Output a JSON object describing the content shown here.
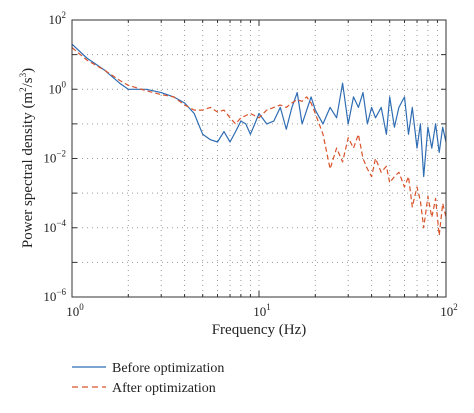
{
  "chart_data": {
    "type": "line",
    "xlabel": "Frequency (Hz)",
    "ylabel": {
      "prefix": "Power spectral density (m",
      "sup1": "2",
      "middle": "/s",
      "sup2": "3",
      "suffix": ")"
    },
    "x_scale": "log",
    "y_scale": "log",
    "xlim": [
      1,
      100
    ],
    "ylim": [
      1e-06,
      100
    ],
    "grid": "dotted",
    "legend_position": "below",
    "x_ticks": [
      {
        "value": 1,
        "base": "10",
        "exp": "0"
      },
      {
        "value": 10,
        "base": "10",
        "exp": "1"
      },
      {
        "value": 100,
        "base": "10",
        "exp": "2"
      }
    ],
    "y_ticks": [
      {
        "value": 100,
        "base": "10",
        "exp": "2"
      },
      {
        "value": 1,
        "base": "10",
        "exp": "0"
      },
      {
        "value": 0.01,
        "base": "10",
        "exp": "−2"
      },
      {
        "value": 0.0001,
        "base": "10",
        "exp": "−4"
      },
      {
        "value": 1e-06,
        "base": "10",
        "exp": "−6"
      }
    ],
    "series": [
      {
        "name": "Before optimization",
        "color": "#2f6db3",
        "dash": "solid",
        "points": [
          [
            1.0,
            20
          ],
          [
            1.2,
            8
          ],
          [
            1.5,
            3.5
          ],
          [
            1.8,
            1.5
          ],
          [
            2.0,
            1.0
          ],
          [
            2.5,
            1.0
          ],
          [
            3.0,
            0.8
          ],
          [
            3.5,
            0.6
          ],
          [
            4.0,
            0.4
          ],
          [
            4.5,
            0.2
          ],
          [
            5.0,
            0.05
          ],
          [
            5.5,
            0.035
          ],
          [
            6.0,
            0.03
          ],
          [
            6.5,
            0.06
          ],
          [
            7.0,
            0.03
          ],
          [
            7.5,
            0.06
          ],
          [
            8.0,
            0.12
          ],
          [
            8.5,
            0.1
          ],
          [
            9.0,
            0.05
          ],
          [
            9.5,
            0.1
          ],
          [
            10.0,
            0.2
          ],
          [
            11.0,
            0.1
          ],
          [
            12.0,
            0.12
          ],
          [
            13.0,
            0.3
          ],
          [
            14.0,
            0.07
          ],
          [
            15.0,
            0.3
          ],
          [
            16.0,
            0.8
          ],
          [
            17.0,
            0.1
          ],
          [
            18.0,
            0.25
          ],
          [
            19.0,
            0.6
          ],
          [
            20.0,
            0.25
          ],
          [
            22.0,
            0.1
          ],
          [
            24.0,
            0.3
          ],
          [
            26.0,
            0.15
          ],
          [
            28.0,
            1.5
          ],
          [
            30.0,
            0.1
          ],
          [
            32.0,
            0.6
          ],
          [
            34.0,
            0.3
          ],
          [
            36.0,
            0.8
          ],
          [
            38.0,
            0.1
          ],
          [
            40.0,
            0.3
          ],
          [
            42.0,
            0.15
          ],
          [
            45.0,
            0.3
          ],
          [
            48.0,
            0.05
          ],
          [
            50.0,
            0.6
          ],
          [
            53.0,
            0.08
          ],
          [
            56.0,
            0.3
          ],
          [
            60.0,
            0.6
          ],
          [
            63.0,
            0.05
          ],
          [
            66.0,
            0.3
          ],
          [
            70.0,
            0.02
          ],
          [
            73.0,
            0.1
          ],
          [
            76.0,
            0.003
          ],
          [
            80.0,
            0.08
          ],
          [
            84.0,
            0.02
          ],
          [
            88.0,
            0.1
          ],
          [
            92.0,
            0.015
          ],
          [
            96.0,
            0.08
          ],
          [
            100.0,
            0.03
          ]
        ]
      },
      {
        "name": "After optimization",
        "color": "#d9532a",
        "dash": "dashed",
        "points": [
          [
            1.0,
            16
          ],
          [
            1.2,
            7
          ],
          [
            1.5,
            3.5
          ],
          [
            1.8,
            1.8
          ],
          [
            2.0,
            1.3
          ],
          [
            2.5,
            0.9
          ],
          [
            3.0,
            0.7
          ],
          [
            3.5,
            0.6
          ],
          [
            4.0,
            0.35
          ],
          [
            4.5,
            0.25
          ],
          [
            5.0,
            0.25
          ],
          [
            5.5,
            0.3
          ],
          [
            6.0,
            0.22
          ],
          [
            6.5,
            0.25
          ],
          [
            7.0,
            0.15
          ],
          [
            7.5,
            0.1
          ],
          [
            8.0,
            0.15
          ],
          [
            9.0,
            0.2
          ],
          [
            10.0,
            0.15
          ],
          [
            11.0,
            0.25
          ],
          [
            12.0,
            0.3
          ],
          [
            13.0,
            0.35
          ],
          [
            14.0,
            0.3
          ],
          [
            15.0,
            0.4
          ],
          [
            16.0,
            0.5
          ],
          [
            17.0,
            0.45
          ],
          [
            18.0,
            0.6
          ],
          [
            19.0,
            0.4
          ],
          [
            20.0,
            0.2
          ],
          [
            22.0,
            0.05
          ],
          [
            24.0,
            0.005
          ],
          [
            26.0,
            0.02
          ],
          [
            28.0,
            0.008
          ],
          [
            30.0,
            0.04
          ],
          [
            32.0,
            0.02
          ],
          [
            34.0,
            0.05
          ],
          [
            36.0,
            0.01
          ],
          [
            38.0,
            0.005
          ],
          [
            40.0,
            0.003
          ],
          [
            42.0,
            0.01
          ],
          [
            45.0,
            0.004
          ],
          [
            48.0,
            0.006
          ],
          [
            50.0,
            0.002
          ],
          [
            53.0,
            0.003
          ],
          [
            56.0,
            0.004
          ],
          [
            60.0,
            0.0015
          ],
          [
            63.0,
            0.003
          ],
          [
            66.0,
            0.0004
          ],
          [
            70.0,
            0.0015
          ],
          [
            73.0,
            0.0006
          ],
          [
            76.0,
            0.0001
          ],
          [
            80.0,
            0.0008
          ],
          [
            84.0,
            0.0002
          ],
          [
            88.0,
            0.0007
          ],
          [
            92.0,
            6e-05
          ],
          [
            96.0,
            0.0005
          ],
          [
            100.0,
            0.0002
          ]
        ]
      }
    ]
  }
}
